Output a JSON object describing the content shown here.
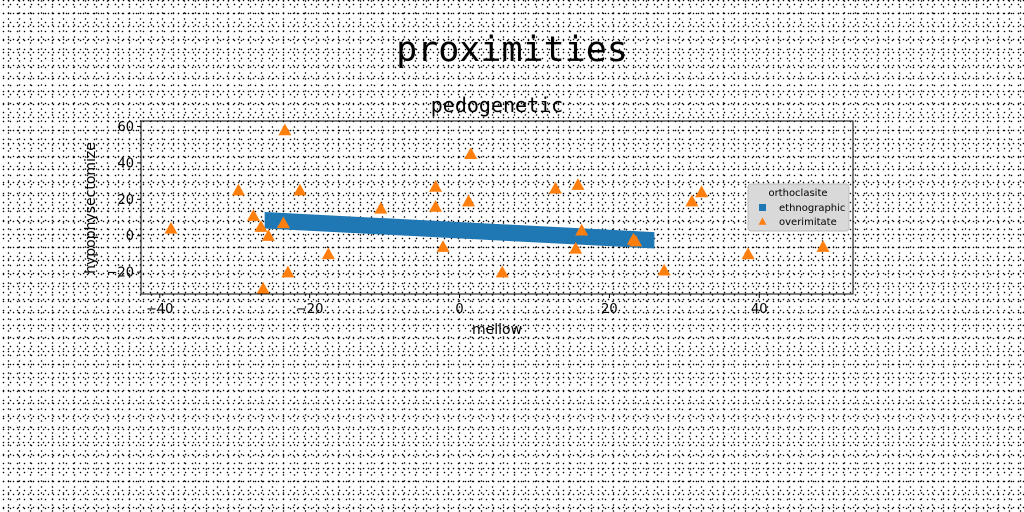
{
  "figure": {
    "suptitle": "proximities"
  },
  "chart_data": {
    "type": "scatter",
    "title": "pedogenetic",
    "xlabel": "mellow",
    "ylabel": "hypophysectomize",
    "xlim": [
      -42.5,
      52.5
    ],
    "ylim": [
      -32,
      63
    ],
    "xticks": [
      -40,
      -20,
      0,
      20,
      40
    ],
    "yticks": [
      -20,
      0,
      20,
      40,
      60
    ],
    "grid": false,
    "legend": {
      "title": "orthoclasite",
      "position": "right"
    },
    "series": [
      {
        "name": "ethnographic",
        "kind": "band",
        "marker": "square",
        "color": "#1f77b4",
        "x_start": -26,
        "x_end": 26,
        "y_start": 8.5,
        "y_end": -2.5,
        "thickness": 9
      },
      {
        "name": "overimitate",
        "kind": "points",
        "marker": "triangle",
        "color": "#ff7f0e",
        "points": [
          [
            -38.5,
            4
          ],
          [
            -29.5,
            25
          ],
          [
            -27.5,
            11
          ],
          [
            -26.5,
            5
          ],
          [
            -26.2,
            -29
          ],
          [
            -25.5,
            0
          ],
          [
            -23.5,
            7
          ],
          [
            -23.3,
            58
          ],
          [
            -22.9,
            -20
          ],
          [
            -21.3,
            25
          ],
          [
            -17.5,
            -10
          ],
          [
            -10.5,
            15
          ],
          [
            -3.2,
            27
          ],
          [
            -3.2,
            16
          ],
          [
            -2.2,
            -6
          ],
          [
            1.2,
            19
          ],
          [
            1.5,
            45
          ],
          [
            5.7,
            -20
          ],
          [
            12.8,
            26
          ],
          [
            15.5,
            -7
          ],
          [
            15.8,
            28
          ],
          [
            16.3,
            3
          ],
          [
            23.2,
            -2
          ],
          [
            23.5,
            -3
          ],
          [
            27.3,
            -19
          ],
          [
            31,
            19
          ],
          [
            32.3,
            24
          ],
          [
            38.5,
            -10
          ],
          [
            48.5,
            -6
          ]
        ]
      }
    ]
  }
}
